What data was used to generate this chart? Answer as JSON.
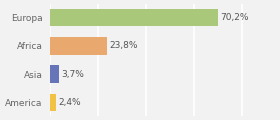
{
  "categories": [
    "America",
    "Asia",
    "Africa",
    "Europa"
  ],
  "values": [
    2.4,
    3.7,
    23.8,
    70.2
  ],
  "bar_colors": [
    "#f2c244",
    "#6674b8",
    "#e8a86e",
    "#aac87a"
  ],
  "labels": [
    "2,4%",
    "3,7%",
    "23,8%",
    "70,2%"
  ],
  "background_color": "#f2f2f2",
  "bar_height": 0.62,
  "xlim": [
    0,
    82
  ],
  "label_fontsize": 6.5,
  "tick_fontsize": 6.5,
  "grid_color": "#ffffff",
  "grid_linewidth": 1.2,
  "xticks": [
    0,
    20,
    40,
    60,
    80
  ]
}
